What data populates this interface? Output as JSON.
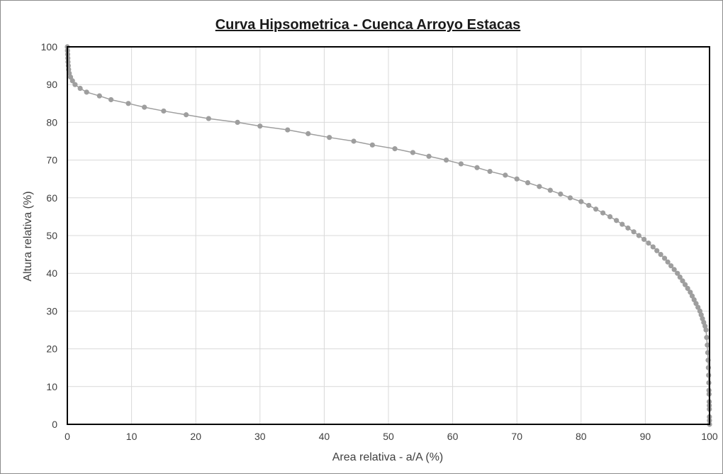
{
  "chart_data": {
    "type": "scatter",
    "title": "Curva Hipsometrica - Cuenca Arroyo Estacas",
    "xlabel": "Area relativa - a/A (%)",
    "ylabel": "Altura relativa (%)",
    "xlim": [
      0,
      100
    ],
    "ylim": [
      0,
      100
    ],
    "x_ticks": [
      "0",
      "10",
      "20",
      "30",
      "40",
      "50",
      "60",
      "70",
      "80",
      "90",
      "100"
    ],
    "y_ticks": [
      "0",
      "10",
      "20",
      "30",
      "40",
      "50",
      "60",
      "70",
      "80",
      "90",
      "100"
    ],
    "grid": true,
    "legend": "none",
    "colors": {
      "line": "#9e9e9e",
      "marker": "#9e9e9e",
      "grid": "#d9d9d9",
      "plot_border": "#000000"
    },
    "series": [
      {
        "x": [
          0.0,
          0.02,
          0.05,
          0.08,
          0.1,
          0.15,
          0.2,
          0.3,
          0.5,
          0.8,
          1.2,
          2.0,
          3.0,
          5.0,
          6.8,
          9.5,
          12.0,
          15.0,
          18.5,
          22.0,
          26.5,
          30.0,
          34.3,
          37.5,
          40.8,
          44.6,
          47.5,
          51.0,
          53.8,
          56.3,
          59.0,
          61.3,
          63.8,
          65.8,
          68.2,
          70.0,
          71.7,
          73.5,
          75.2,
          76.8,
          78.3,
          80.0,
          81.2,
          82.3,
          83.4,
          84.5,
          85.5,
          86.4,
          87.3,
          88.2,
          89.0,
          89.8,
          90.5,
          91.2,
          91.8,
          92.4,
          93.0,
          93.5,
          94.0,
          94.5,
          95.0,
          95.4,
          95.8,
          96.2,
          96.6,
          97.0,
          97.3,
          97.6,
          97.9,
          98.2,
          98.5,
          98.7,
          98.9,
          99.1,
          99.3,
          99.45,
          99.55,
          99.65,
          99.72,
          99.78,
          99.82,
          99.86,
          99.89,
          99.91,
          99.93,
          99.95,
          99.96,
          99.97,
          99.98,
          99.99,
          100.0
        ],
        "y": [
          100,
          99,
          98,
          97,
          96,
          95,
          94,
          93,
          92,
          91,
          90,
          89,
          88,
          87,
          86,
          85,
          84,
          83,
          82,
          81,
          80,
          79,
          78,
          77,
          76,
          75,
          74,
          73,
          72,
          71,
          70,
          69,
          68,
          67,
          66,
          65,
          64,
          63,
          62,
          61,
          60,
          59,
          58,
          57,
          56,
          55,
          54,
          53,
          52,
          51,
          50,
          49,
          48,
          47,
          46,
          45,
          44,
          43,
          42,
          41,
          40,
          39,
          38,
          37,
          36,
          35,
          34,
          33,
          32,
          31,
          30,
          29,
          28,
          27,
          26,
          25,
          23,
          21,
          19,
          17,
          15,
          13,
          11,
          9,
          8,
          6,
          5,
          4,
          2,
          1,
          0
        ]
      }
    ]
  }
}
